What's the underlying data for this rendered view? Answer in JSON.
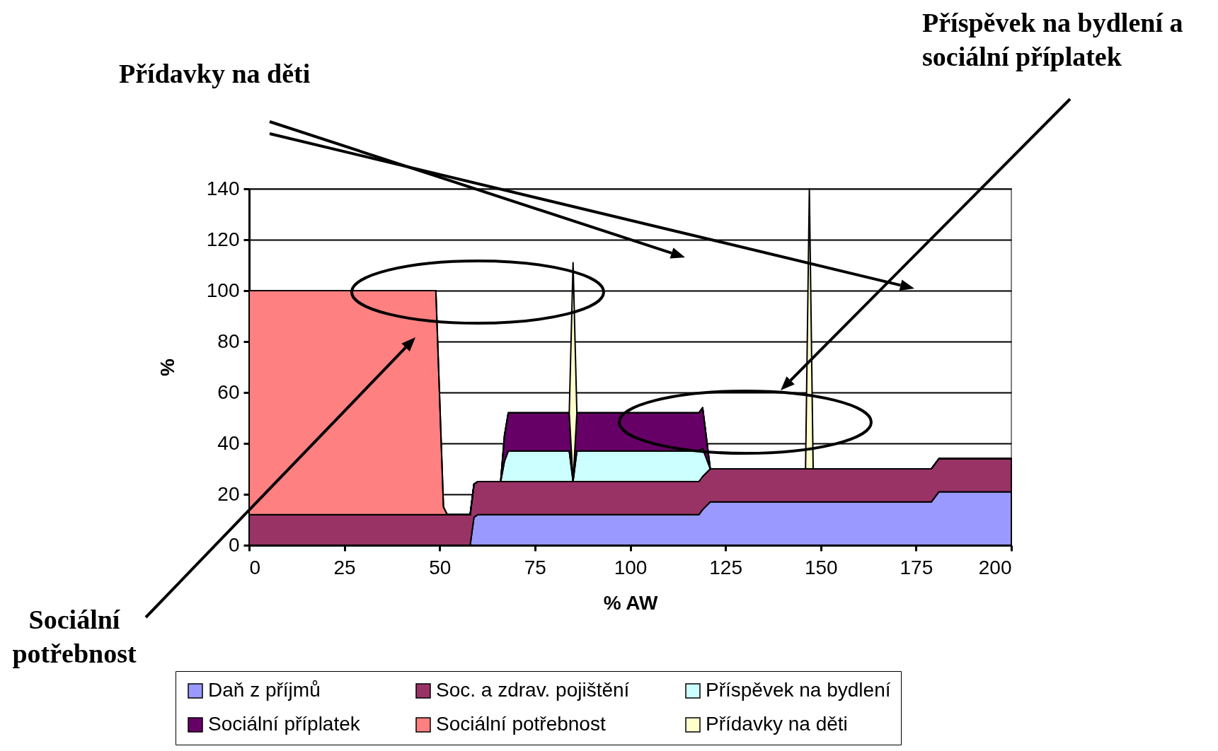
{
  "chart_data": {
    "type": "area",
    "stacked": true,
    "xlabel": "% AW",
    "ylabel": "%",
    "x": [
      0,
      49,
      51,
      52,
      58,
      59,
      60,
      66,
      67,
      68,
      84,
      85,
      86,
      118,
      119,
      121,
      146,
      147,
      148,
      179,
      181,
      200
    ],
    "series": [
      {
        "name": "Daň z příjmů",
        "color": "#9999ff",
        "values": [
          0,
          0,
          0,
          0,
          0,
          11,
          12,
          12,
          12,
          12,
          12,
          12,
          12,
          12,
          14,
          17,
          17,
          17,
          17,
          17,
          21,
          21
        ]
      },
      {
        "name": "Soc. a zdrav. pojištění",
        "color": "#993366",
        "values": [
          12,
          12,
          12,
          12,
          12,
          13,
          13,
          13,
          13,
          13,
          13,
          13,
          13,
          13,
          13,
          13,
          13,
          13,
          13,
          13,
          13,
          13
        ]
      },
      {
        "name": "Příspěvek na bydlení",
        "color": "#ccffff",
        "values": [
          0,
          0,
          0,
          0,
          0,
          0,
          0,
          0,
          8,
          12,
          12,
          0,
          12,
          12,
          11,
          0,
          0,
          0,
          0,
          0,
          0,
          0
        ]
      },
      {
        "name": "Sociální příplatek",
        "color": "#660066",
        "values": [
          0,
          0,
          0,
          0,
          0,
          0,
          0,
          0,
          10,
          15,
          15,
          0,
          15,
          15,
          16,
          0,
          0,
          0,
          0,
          0,
          0,
          0
        ]
      },
      {
        "name": "Sociální potřebnost",
        "color": "#ff8080",
        "values": [
          88,
          88,
          3,
          0,
          0,
          0,
          0,
          0,
          0,
          0,
          0,
          0,
          0,
          0,
          0,
          0,
          0,
          0,
          0,
          0,
          0,
          0
        ]
      },
      {
        "name": "Přídavky na děti",
        "color": "#ffffcc",
        "values": [
          0,
          0,
          0,
          0,
          0,
          0,
          0,
          0,
          0,
          0,
          0,
          86,
          0,
          0,
          0,
          0,
          0,
          110,
          0,
          0,
          0,
          0
        ]
      }
    ],
    "xlim": [
      0,
      200
    ],
    "xticks": [
      0,
      25,
      50,
      75,
      100,
      125,
      150,
      175,
      200
    ],
    "ylim": [
      0,
      140
    ],
    "yticks": [
      0,
      20,
      40,
      60,
      80,
      100,
      120,
      140
    ],
    "grid": "y",
    "legend": "bottom",
    "annotations": [
      "Přídavky na děti",
      "Příspěvek na bydlení a sociální příplatek",
      "Sociální potřebnost"
    ]
  }
}
